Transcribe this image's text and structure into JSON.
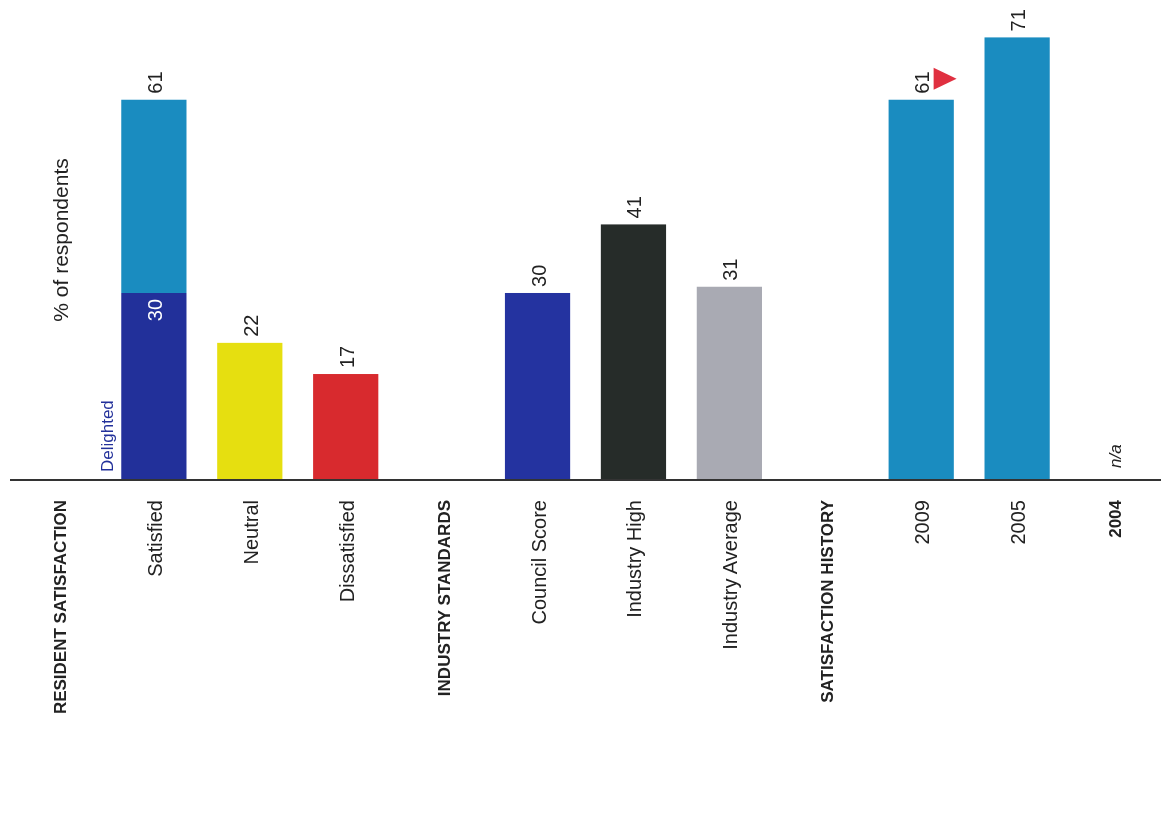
{
  "chart_data": {
    "type": "bar",
    "ylabel": "% of respondents",
    "stacked": true,
    "categories": [
      "RESIDENT SATISFACTION",
      "Satisfied",
      "Neutral",
      "Dissatisfied",
      "INDUSTRY STANDARDS",
      "Council Score",
      "Industry High",
      "Industry Average",
      "SATISFACTION HISTORY",
      "2009",
      "2005",
      "2004"
    ],
    "ylim": [
      0,
      77
    ],
    "series": [
      {
        "name": "Delighted",
        "color": "#22309a",
        "values": [
          null,
          30,
          null,
          null,
          null,
          null,
          null,
          null,
          null,
          null,
          null,
          null
        ],
        "value_labels": [
          null,
          "30",
          null,
          null,
          null,
          null,
          null,
          null,
          null,
          null,
          null,
          null
        ]
      },
      {
        "colors": [
          null,
          "#1a8cc0",
          "#e6df10",
          "#d82a2e",
          null,
          "#2433a0",
          "#262c29",
          "#a9aab3",
          null,
          "#1a8cc0",
          "#1a8cc0",
          null
        ],
        "values": [
          null,
          31,
          22,
          17,
          null,
          30,
          41,
          31,
          null,
          61,
          71,
          null
        ]
      }
    ],
    "totals": [
      null,
      "61",
      "22",
      "17",
      null,
      "30",
      "41",
      "31",
      null,
      "61",
      "71",
      "n/a"
    ]
  }
}
